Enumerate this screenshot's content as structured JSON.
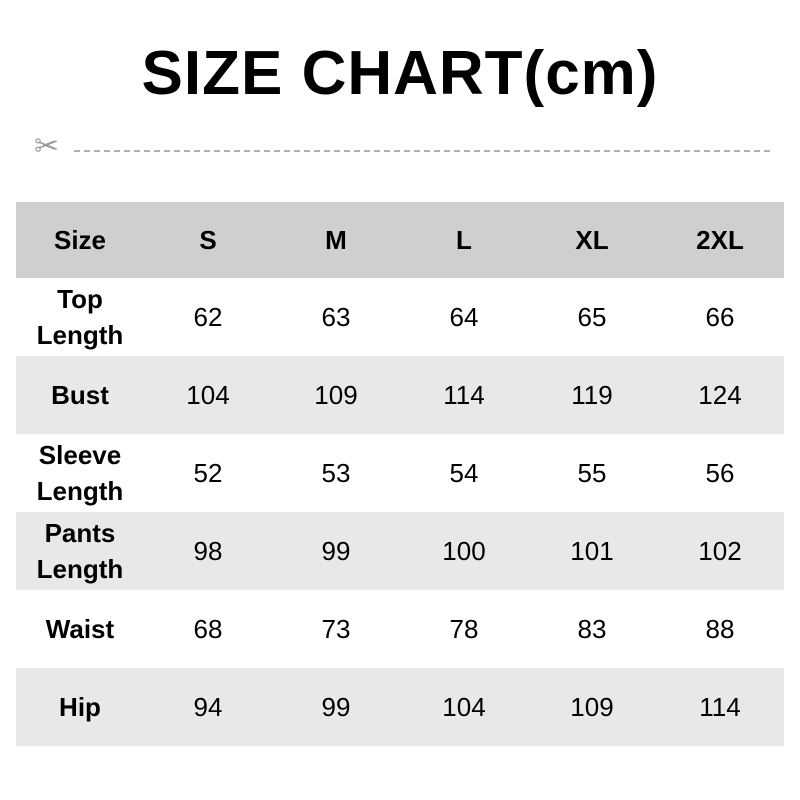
{
  "title": "SIZE CHART(cm)",
  "cut_line_icon": "scissors-icon",
  "colors": {
    "header_bg": "#d0cfd0",
    "alt_row_bg": "#e9e8e9"
  },
  "table": {
    "headers": [
      "Size",
      "S",
      "M",
      "L",
      "XL",
      "2XL"
    ],
    "rows": [
      {
        "label": "Top\nLength",
        "values": [
          "62",
          "63",
          "64",
          "65",
          "66"
        ]
      },
      {
        "label": "Bust",
        "values": [
          "104",
          "109",
          "114",
          "119",
          "124"
        ]
      },
      {
        "label": "Sleeve\nLength",
        "values": [
          "52",
          "53",
          "54",
          "55",
          "56"
        ]
      },
      {
        "label": "Pants\nLength",
        "values": [
          "98",
          "99",
          "100",
          "101",
          "102"
        ]
      },
      {
        "label": "Waist",
        "values": [
          "68",
          "73",
          "78",
          "83",
          "88"
        ]
      },
      {
        "label": "Hip",
        "values": [
          "94",
          "99",
          "104",
          "109",
          "114"
        ]
      }
    ]
  }
}
